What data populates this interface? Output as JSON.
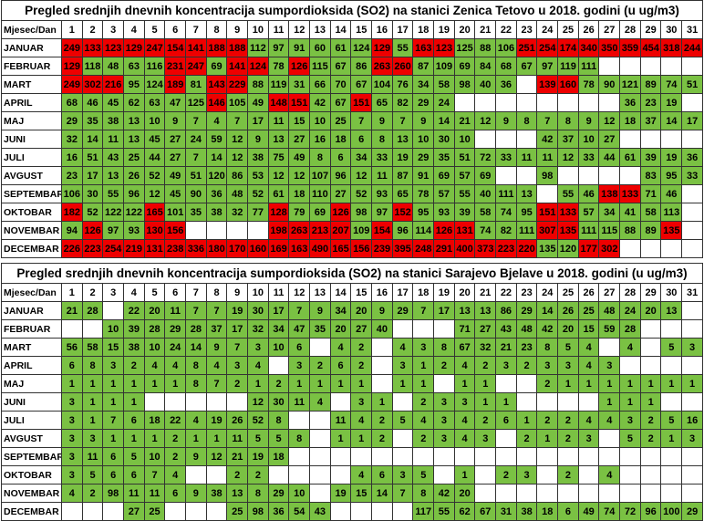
{
  "colors": {
    "high": "#ee0000",
    "normal": "#7ac143"
  },
  "tables": [
    {
      "title": "Pregled srednjih dnevnih koncentracija sumpordioksida (SO2) na stanici Zenica Tetovo u 2018. godini (u ug/m3)",
      "header": "Mjesec/Dan",
      "days": [
        1,
        2,
        3,
        4,
        5,
        6,
        7,
        8,
        9,
        10,
        11,
        12,
        13,
        14,
        15,
        16,
        17,
        18,
        19,
        20,
        21,
        22,
        23,
        24,
        25,
        26,
        27,
        28,
        29,
        30,
        31
      ],
      "rows": [
        {
          "month": "JANUAR",
          "values": [
            249,
            133,
            123,
            129,
            247,
            154,
            141,
            188,
            188,
            112,
            97,
            91,
            60,
            61,
            124,
            129,
            55,
            163,
            123,
            125,
            88,
            106,
            251,
            254,
            174,
            340,
            350,
            359,
            454,
            318,
            244
          ],
          "red": [
            1,
            2,
            3,
            4,
            5,
            6,
            7,
            8,
            9,
            16,
            18,
            19,
            23,
            24,
            25,
            26,
            27,
            28,
            29,
            30,
            31
          ]
        },
        {
          "month": "FEBRUAR",
          "values": [
            129,
            118,
            48,
            63,
            116,
            231,
            247,
            69,
            141,
            124,
            78,
            126,
            115,
            67,
            86,
            263,
            260,
            87,
            109,
            69,
            84,
            68,
            67,
            97,
            119,
            111,
            null,
            null,
            null,
            null,
            null
          ],
          "red": [
            1,
            6,
            7,
            9,
            10,
            12,
            16,
            17
          ]
        },
        {
          "month": "MART",
          "values": [
            249,
            302,
            216,
            95,
            124,
            189,
            81,
            143,
            229,
            88,
            119,
            31,
            66,
            70,
            67,
            104,
            76,
            34,
            58,
            98,
            40,
            36,
            null,
            139,
            160,
            78,
            90,
            121,
            89,
            74,
            51
          ],
          "red": [
            1,
            2,
            3,
            6,
            8,
            9,
            24,
            25
          ]
        },
        {
          "month": "APRIL",
          "values": [
            68,
            46,
            45,
            62,
            63,
            47,
            125,
            146,
            105,
            49,
            148,
            151,
            42,
            67,
            151,
            65,
            82,
            29,
            24,
            null,
            null,
            null,
            null,
            null,
            null,
            null,
            null,
            36,
            23,
            19,
            null
          ],
          "red": [
            8,
            11,
            12,
            15
          ]
        },
        {
          "month": "MAJ",
          "values": [
            29,
            35,
            38,
            13,
            10,
            9,
            7,
            4,
            7,
            17,
            11,
            15,
            10,
            25,
            7,
            9,
            7,
            9,
            14,
            21,
            12,
            9,
            8,
            7,
            8,
            9,
            12,
            18,
            37,
            14,
            17
          ]
        },
        {
          "month": "JUNI",
          "values": [
            32,
            14,
            11,
            13,
            45,
            27,
            24,
            59,
            12,
            9,
            13,
            27,
            16,
            18,
            6,
            8,
            13,
            10,
            30,
            10,
            null,
            null,
            null,
            42,
            37,
            10,
            27,
            null,
            null,
            null,
            null
          ]
        },
        {
          "month": "JULI",
          "values": [
            16,
            51,
            43,
            25,
            44,
            27,
            7,
            14,
            12,
            38,
            75,
            49,
            8,
            6,
            34,
            33,
            19,
            29,
            35,
            51,
            72,
            33,
            11,
            11,
            12,
            33,
            44,
            61,
            39,
            19,
            36
          ]
        },
        {
          "month": "AVGUST",
          "values": [
            23,
            17,
            13,
            26,
            52,
            49,
            51,
            120,
            86,
            53,
            12,
            12,
            107,
            96,
            12,
            11,
            87,
            91,
            69,
            57,
            69,
            null,
            null,
            98,
            null,
            null,
            null,
            null,
            83,
            95,
            33
          ]
        },
        {
          "month": "SEPTEMBAR",
          "values": [
            106,
            30,
            55,
            96,
            12,
            45,
            90,
            36,
            48,
            52,
            61,
            18,
            110,
            27,
            52,
            93,
            65,
            78,
            57,
            55,
            40,
            111,
            13,
            null,
            55,
            46,
            138,
            133,
            71,
            46,
            null
          ],
          "red": [
            27,
            28
          ]
        },
        {
          "month": "OKTOBAR",
          "values": [
            182,
            52,
            122,
            122,
            165,
            101,
            35,
            38,
            32,
            77,
            128,
            79,
            69,
            126,
            98,
            97,
            152,
            95,
            93,
            39,
            58,
            74,
            95,
            151,
            133,
            57,
            34,
            41,
            58,
            113,
            null
          ],
          "red": [
            1,
            5,
            11,
            14,
            17,
            24,
            25
          ]
        },
        {
          "month": "NOVEMBAR",
          "values": [
            94,
            126,
            97,
            93,
            130,
            156,
            null,
            null,
            null,
            null,
            198,
            263,
            213,
            207,
            109,
            154,
            96,
            114,
            126,
            131,
            74,
            82,
            111,
            307,
            135,
            111,
            115,
            88,
            89,
            135,
            null
          ],
          "red": [
            2,
            5,
            6,
            11,
            12,
            13,
            14,
            16,
            19,
            20,
            24,
            25,
            30
          ]
        },
        {
          "month": "DECEMBAR",
          "values": [
            226,
            223,
            254,
            219,
            131,
            238,
            336,
            180,
            170,
            160,
            169,
            163,
            490,
            165,
            156,
            239,
            395,
            248,
            291,
            400,
            373,
            223,
            220,
            135,
            120,
            177,
            302,
            null,
            null,
            null,
            null
          ],
          "red": [
            1,
            2,
            3,
            4,
            5,
            6,
            7,
            8,
            9,
            10,
            11,
            12,
            13,
            14,
            15,
            16,
            17,
            18,
            19,
            20,
            21,
            22,
            23,
            26,
            27
          ]
        }
      ]
    },
    {
      "title": "Pregled srednjih dnevnih koncentracija sumpordioksida (SO2) na stanici Sarajevo Bjelave u 2018. godini (u ug/m3)",
      "header": "Mjesec/Dan",
      "days": [
        1,
        2,
        3,
        4,
        5,
        6,
        7,
        8,
        9,
        10,
        11,
        12,
        13,
        14,
        15,
        16,
        17,
        18,
        19,
        20,
        21,
        22,
        23,
        24,
        25,
        26,
        27,
        28,
        29,
        30,
        31
      ],
      "rows": [
        {
          "month": "JANUAR",
          "values": [
            21,
            28,
            null,
            22,
            20,
            11,
            7,
            7,
            19,
            30,
            17,
            7,
            9,
            34,
            20,
            9,
            29,
            7,
            17,
            13,
            13,
            86,
            29,
            14,
            26,
            25,
            48,
            24,
            20,
            13,
            null
          ]
        },
        {
          "month": "FEBRUAR",
          "values": [
            null,
            null,
            10,
            39,
            28,
            29,
            28,
            37,
            17,
            32,
            34,
            47,
            35,
            20,
            27,
            40,
            null,
            null,
            null,
            71,
            27,
            43,
            48,
            42,
            20,
            15,
            59,
            28,
            null,
            null,
            null
          ]
        },
        {
          "month": "MART",
          "values": [
            56,
            58,
            15,
            38,
            10,
            24,
            14,
            9,
            7,
            3,
            10,
            6,
            null,
            4,
            2,
            null,
            4,
            3,
            8,
            67,
            32,
            21,
            23,
            8,
            5,
            4,
            null,
            4,
            null,
            5,
            3
          ]
        },
        {
          "month": "APRIL",
          "values": [
            6,
            8,
            3,
            2,
            4,
            4,
            8,
            4,
            3,
            4,
            null,
            3,
            2,
            6,
            2,
            null,
            3,
            1,
            2,
            4,
            2,
            3,
            2,
            3,
            3,
            4,
            3,
            null,
            null,
            null,
            null
          ]
        },
        {
          "month": "MAJ",
          "values": [
            1,
            1,
            1,
            1,
            1,
            1,
            8,
            7,
            2,
            1,
            2,
            1,
            1,
            1,
            1,
            null,
            1,
            1,
            null,
            1,
            1,
            null,
            null,
            2,
            1,
            1,
            1,
            1,
            1,
            1,
            1
          ]
        },
        {
          "month": "JUNI",
          "values": [
            3,
            1,
            1,
            1,
            null,
            null,
            null,
            null,
            null,
            12,
            30,
            11,
            4,
            null,
            3,
            1,
            null,
            2,
            3,
            3,
            1,
            1,
            null,
            null,
            null,
            null,
            1,
            1,
            1,
            null,
            null
          ]
        },
        {
          "month": "JULI",
          "values": [
            3,
            1,
            7,
            6,
            18,
            22,
            4,
            19,
            26,
            52,
            8,
            null,
            null,
            11,
            4,
            2,
            5,
            4,
            3,
            4,
            2,
            6,
            1,
            2,
            2,
            4,
            4,
            3,
            2,
            5,
            16
          ]
        },
        {
          "month": "AVGUST",
          "values": [
            3,
            3,
            1,
            1,
            1,
            2,
            1,
            1,
            11,
            5,
            5,
            8,
            null,
            1,
            1,
            2,
            null,
            2,
            3,
            4,
            3,
            null,
            2,
            1,
            2,
            3,
            null,
            5,
            2,
            1,
            3
          ]
        },
        {
          "month": "SEPTEMBAR",
          "values": [
            3,
            11,
            6,
            5,
            10,
            2,
            9,
            12,
            21,
            19,
            18,
            null,
            null,
            null,
            null,
            null,
            null,
            null,
            null,
            null,
            null,
            null,
            null,
            null,
            null,
            null,
            null,
            null,
            null,
            null,
            null
          ]
        },
        {
          "month": "OKTOBAR",
          "values": [
            3,
            5,
            6,
            6,
            7,
            4,
            null,
            null,
            2,
            2,
            null,
            null,
            null,
            null,
            4,
            6,
            3,
            5,
            null,
            1,
            null,
            2,
            3,
            null,
            2,
            null,
            4,
            null,
            null,
            null,
            null
          ]
        },
        {
          "month": "NOVEMBAR",
          "values": [
            4,
            2,
            98,
            11,
            11,
            6,
            9,
            38,
            13,
            8,
            29,
            10,
            null,
            19,
            15,
            14,
            7,
            8,
            42,
            20,
            null,
            null,
            null,
            null,
            null,
            null,
            null,
            null,
            null,
            null,
            null
          ]
        },
        {
          "month": "DECEMBAR",
          "values": [
            null,
            null,
            null,
            27,
            25,
            null,
            null,
            null,
            25,
            98,
            36,
            54,
            43,
            null,
            null,
            null,
            null,
            117,
            55,
            62,
            67,
            31,
            38,
            18,
            6,
            49,
            74,
            72,
            96,
            100,
            29
          ]
        }
      ]
    }
  ]
}
